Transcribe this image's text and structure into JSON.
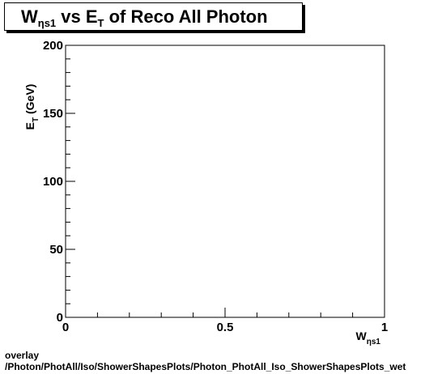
{
  "chart_data": {
    "type": "scatter",
    "title_parts": [
      "W",
      "ηs1",
      " vs E",
      "T",
      " of Reco All Photon"
    ],
    "xlabel_parts": [
      "W",
      "ηs1"
    ],
    "ylabel_parts": [
      "E",
      "T",
      " (GeV)"
    ],
    "xlim": [
      0,
      1
    ],
    "ylim": [
      0,
      200
    ],
    "x_ticks": [
      0,
      0.5,
      1
    ],
    "x_tick_labels": [
      "0",
      "0.5",
      "1"
    ],
    "y_ticks": [
      0,
      50,
      100,
      150,
      200
    ],
    "y_tick_labels": [
      "0",
      "50",
      "100",
      "150",
      "200"
    ],
    "x": [],
    "y": [],
    "grid": false
  },
  "footer": {
    "line1": "overlay",
    "line2": "/Photon/PhotAll/Iso/ShowerShapesPlots/Photon_PhotAll_Iso_ShowerShapesPlots_wet"
  }
}
